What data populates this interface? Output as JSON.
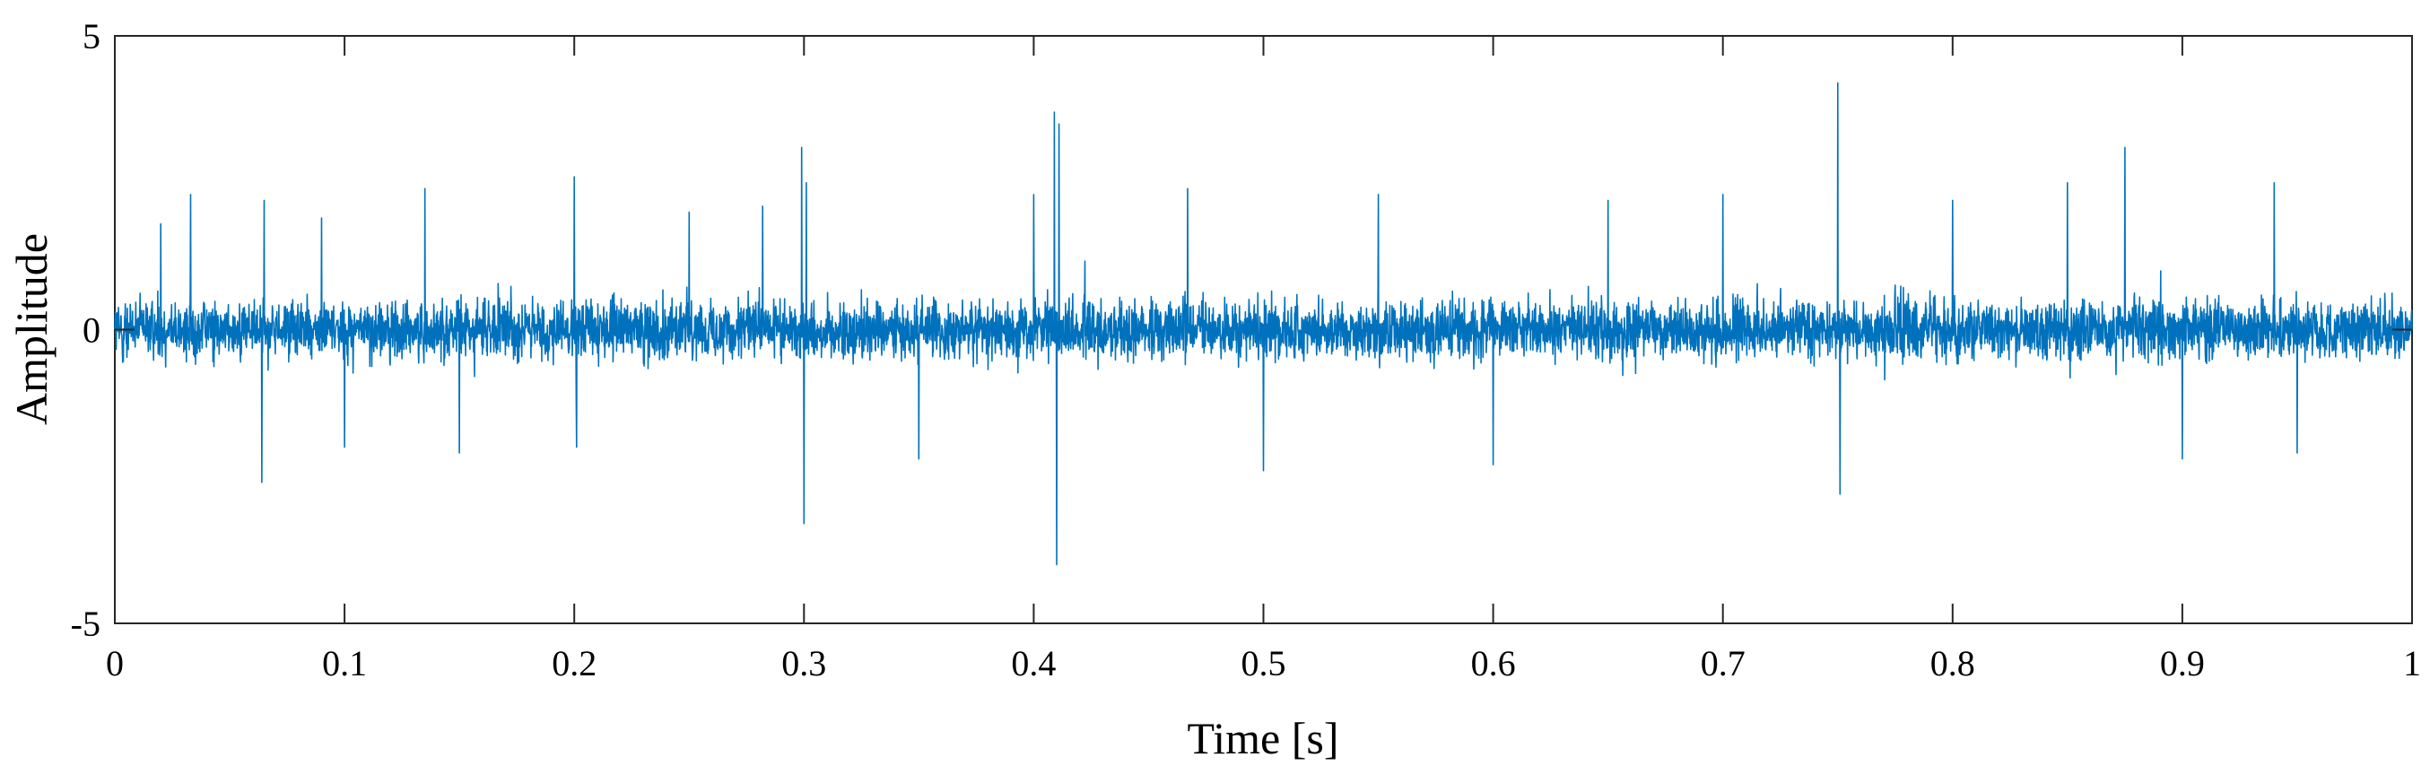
{
  "chart_data": {
    "type": "line",
    "title": "",
    "xlabel": "Time [s]",
    "ylabel": "Amplitude",
    "xlim": [
      0,
      1
    ],
    "ylim": [
      -5,
      5
    ],
    "x_ticks": [
      "0",
      "0.1",
      "0.2",
      "0.3",
      "0.4",
      "0.5",
      "0.6",
      "0.7",
      "0.8",
      "0.9",
      "1"
    ],
    "y_ticks": [
      "-5",
      "0",
      "5"
    ],
    "grid": false,
    "legend": "none",
    "line_color": "#0072BD",
    "series": [
      {
        "values_description_note": "",
        "x": [
          0.0,
          0.02,
          0.033,
          0.064,
          0.065,
          0.09,
          0.1,
          0.135,
          0.15,
          0.2,
          0.201,
          0.25,
          0.282,
          0.299,
          0.3,
          0.301,
          0.35,
          0.4,
          0.409,
          0.41,
          0.411,
          0.467,
          0.5,
          0.55,
          0.6,
          0.65,
          0.7,
          0.75,
          0.751,
          0.8,
          0.85,
          0.875,
          0.9,
          0.94,
          0.95,
          1.0
        ],
        "y": [
          0.0,
          1.8,
          2.3,
          -2.6,
          2.2,
          1.9,
          -2.0,
          2.4,
          -2.1,
          2.6,
          -2.0,
          2.0,
          2.1,
          3.1,
          -3.3,
          2.5,
          -2.2,
          2.3,
          3.7,
          -4.0,
          3.5,
          2.4,
          -2.4,
          2.3,
          -2.3,
          2.2,
          2.3,
          4.2,
          -2.8,
          2.2,
          2.5,
          3.1,
          -2.2,
          2.5,
          -2.1,
          0.0
        ]
      }
    ]
  }
}
